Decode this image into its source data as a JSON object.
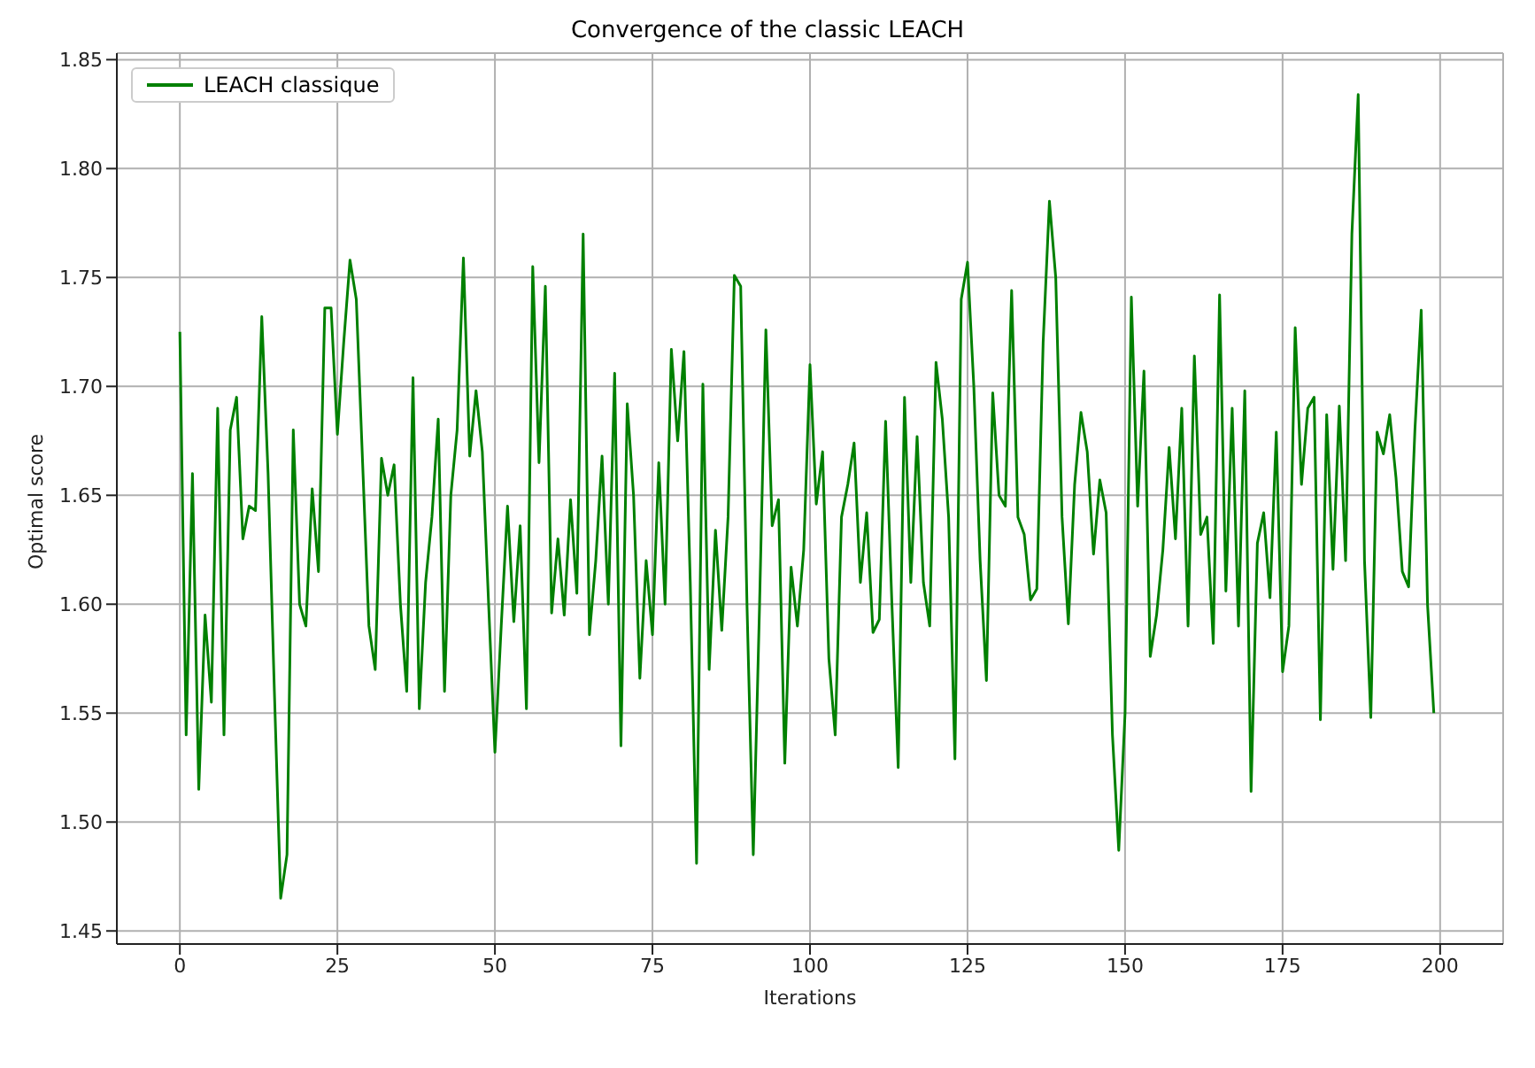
{
  "chart_data": {
    "type": "line",
    "title": "Convergence of the classic LEACH",
    "xlabel": "Iterations",
    "ylabel": "Optimal score",
    "x": [
      0,
      1,
      2,
      3,
      4,
      5,
      6,
      7,
      8,
      9,
      10,
      11,
      12,
      13,
      14,
      15,
      16,
      17,
      18,
      19,
      20,
      21,
      22,
      23,
      24,
      25,
      26,
      27,
      28,
      29,
      30,
      31,
      32,
      33,
      34,
      35,
      36,
      37,
      38,
      39,
      40,
      41,
      42,
      43,
      44,
      45,
      46,
      47,
      48,
      49,
      50,
      51,
      52,
      53,
      54,
      55,
      56,
      57,
      58,
      59,
      60,
      61,
      62,
      63,
      64,
      65,
      66,
      67,
      68,
      69,
      70,
      71,
      72,
      73,
      74,
      75,
      76,
      77,
      78,
      79,
      80,
      81,
      82,
      83,
      84,
      85,
      86,
      87,
      88,
      89,
      90,
      91,
      92,
      93,
      94,
      95,
      96,
      97,
      98,
      99,
      100,
      101,
      102,
      103,
      104,
      105,
      106,
      107,
      108,
      109,
      110,
      111,
      112,
      113,
      114,
      115,
      116,
      117,
      118,
      119,
      120,
      121,
      122,
      123,
      124,
      125,
      126,
      127,
      128,
      129,
      130,
      131,
      132,
      133,
      134,
      135,
      136,
      137,
      138,
      139,
      140,
      141,
      142,
      143,
      144,
      145,
      146,
      147,
      148,
      149,
      150,
      151,
      152,
      153,
      154,
      155,
      156,
      157,
      158,
      159,
      160,
      161,
      162,
      163,
      164,
      165,
      166,
      167,
      168,
      169,
      170,
      171,
      172,
      173,
      174,
      175,
      176,
      177,
      178,
      179,
      180,
      181,
      182,
      183,
      184,
      185,
      186,
      187,
      188,
      189,
      190,
      191,
      192,
      193,
      194,
      195,
      196,
      197,
      198,
      199
    ],
    "series": [
      {
        "name": "LEACH classique",
        "color": "#008000",
        "values": [
          1.725,
          1.54,
          1.66,
          1.515,
          1.595,
          1.555,
          1.69,
          1.54,
          1.68,
          1.695,
          1.63,
          1.645,
          1.643,
          1.732,
          1.66,
          1.56,
          1.465,
          1.485,
          1.68,
          1.6,
          1.59,
          1.653,
          1.615,
          1.736,
          1.736,
          1.678,
          1.72,
          1.758,
          1.74,
          1.665,
          1.59,
          1.57,
          1.667,
          1.65,
          1.664,
          1.6,
          1.56,
          1.704,
          1.552,
          1.61,
          1.64,
          1.685,
          1.56,
          1.65,
          1.68,
          1.759,
          1.668,
          1.698,
          1.67,
          1.6,
          1.532,
          1.59,
          1.645,
          1.592,
          1.636,
          1.552,
          1.755,
          1.665,
          1.746,
          1.596,
          1.63,
          1.595,
          1.648,
          1.605,
          1.77,
          1.586,
          1.62,
          1.668,
          1.6,
          1.706,
          1.535,
          1.692,
          1.65,
          1.566,
          1.62,
          1.586,
          1.665,
          1.6,
          1.717,
          1.675,
          1.716,
          1.61,
          1.481,
          1.701,
          1.57,
          1.634,
          1.588,
          1.64,
          1.751,
          1.746,
          1.6,
          1.485,
          1.6,
          1.726,
          1.636,
          1.648,
          1.527,
          1.617,
          1.59,
          1.625,
          1.71,
          1.646,
          1.67,
          1.575,
          1.54,
          1.64,
          1.655,
          1.674,
          1.61,
          1.642,
          1.587,
          1.593,
          1.684,
          1.6,
          1.525,
          1.695,
          1.61,
          1.677,
          1.61,
          1.59,
          1.711,
          1.685,
          1.64,
          1.529,
          1.74,
          1.757,
          1.7,
          1.62,
          1.565,
          1.697,
          1.65,
          1.645,
          1.744,
          1.64,
          1.632,
          1.602,
          1.607,
          1.72,
          1.785,
          1.75,
          1.64,
          1.591,
          1.655,
          1.688,
          1.67,
          1.623,
          1.657,
          1.642,
          1.54,
          1.487,
          1.55,
          1.741,
          1.645,
          1.707,
          1.576,
          1.595,
          1.625,
          1.672,
          1.63,
          1.69,
          1.59,
          1.714,
          1.632,
          1.64,
          1.582,
          1.742,
          1.606,
          1.69,
          1.59,
          1.698,
          1.514,
          1.628,
          1.642,
          1.603,
          1.679,
          1.569,
          1.59,
          1.727,
          1.655,
          1.69,
          1.695,
          1.547,
          1.687,
          1.616,
          1.691,
          1.62,
          1.77,
          1.834,
          1.62,
          1.548,
          1.679,
          1.669,
          1.687,
          1.658,
          1.615,
          1.608,
          1.68,
          1.735,
          1.6,
          1.55
        ]
      }
    ],
    "xlim": [
      -10,
      210
    ],
    "xticks": [
      0,
      25,
      50,
      75,
      100,
      125,
      150,
      175,
      200
    ],
    "ylim": [
      1.444,
      1.853
    ],
    "yticks": [
      1.45,
      {
        "value": 1.5,
        "label": "1.50"
      },
      1.55,
      {
        "value": 1.6,
        "label": "1.60"
      },
      1.65,
      {
        "value": 1.7,
        "label": "1.70"
      },
      1.75,
      {
        "value": 1.8,
        "label": "1.80"
      },
      1.85
    ],
    "grid": true,
    "legend": "top left",
    "marker": "none",
    "line_style": "solid"
  }
}
